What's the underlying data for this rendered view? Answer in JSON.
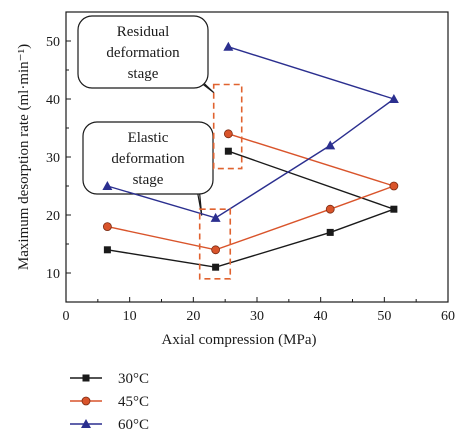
{
  "chart_data": {
    "type": "line",
    "xlabel": "Axial compression (MPa)",
    "ylabel": "Maximum desorption rate (ml·min⁻¹)",
    "xlim": [
      0,
      60
    ],
    "ylim": [
      5,
      55
    ],
    "xticks": [
      0,
      10,
      20,
      30,
      40,
      50,
      60
    ],
    "yticks": [
      10,
      20,
      30,
      40,
      50
    ],
    "grid": false,
    "legend_position": "bottom-left",
    "series": [
      {
        "name": "30°C",
        "color": "#1a1a1a",
        "marker": "square",
        "points": [
          [
            6.5,
            14
          ],
          [
            23.5,
            11
          ],
          [
            25.5,
            31
          ],
          [
            51.5,
            21
          ]
        ],
        "segments": [
          [
            [
              6.5,
              14
            ],
            [
              23.5,
              11
            ],
            [
              41.5,
              17
            ],
            [
              51.5,
              21
            ]
          ],
          [
            [
              25.5,
              31
            ],
            [
              51.5,
              21
            ]
          ]
        ],
        "extra_points": [
          [
            41.5,
            17
          ]
        ]
      },
      {
        "name": "45°C",
        "color": "#d9542b",
        "marker": "circle",
        "points": [
          [
            6.5,
            18
          ],
          [
            23.5,
            14
          ],
          [
            41.5,
            21
          ],
          [
            51.5,
            25
          ],
          [
            25.5,
            34
          ]
        ],
        "segments": [
          [
            [
              6.5,
              18
            ],
            [
              23.5,
              14
            ],
            [
              41.5,
              21
            ],
            [
              51.5,
              25
            ]
          ],
          [
            [
              25.5,
              34
            ],
            [
              51.5,
              25
            ]
          ]
        ]
      },
      {
        "name": "60°C",
        "color": "#2b2f8f",
        "marker": "triangle",
        "points": [
          [
            6.5,
            25
          ],
          [
            23.5,
            19.5
          ],
          [
            41.5,
            32
          ],
          [
            51.5,
            40
          ],
          [
            25.5,
            49
          ]
        ],
        "segments": [
          [
            [
              6.5,
              25
            ],
            [
              23.5,
              19.5
            ],
            [
              41.5,
              32
            ],
            [
              51.5,
              40
            ]
          ],
          [
            [
              25.5,
              49
            ],
            [
              51.5,
              40
            ]
          ]
        ]
      }
    ],
    "annotations": [
      {
        "lines": [
          "Residual",
          "deformation",
          "stage"
        ],
        "box_x": [
          23.2,
          27.6
        ],
        "box_y": [
          28,
          42.5
        ]
      },
      {
        "lines": [
          "Elastic",
          "deformation",
          "stage"
        ],
        "box_x": [
          21,
          25.8
        ],
        "box_y": [
          9,
          21
        ]
      }
    ],
    "highlight_color": "#e0622f"
  }
}
